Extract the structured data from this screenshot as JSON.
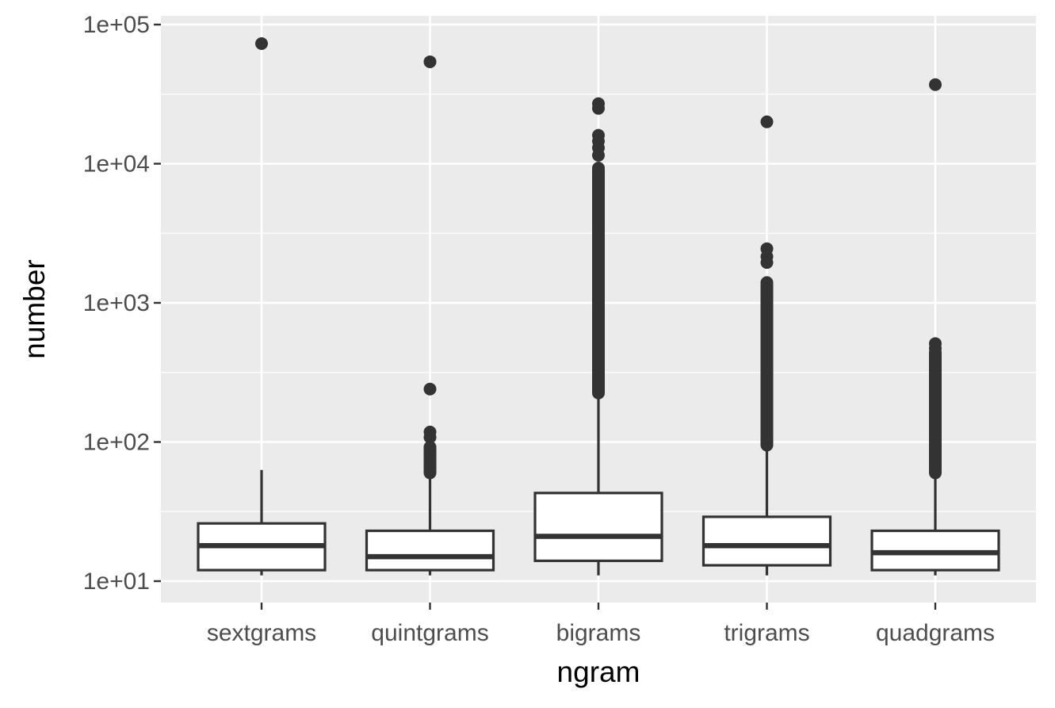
{
  "chart_data": {
    "type": "boxplot",
    "xlabel": "ngram",
    "ylabel": "number",
    "y_scale": "log10",
    "ylim": [
      8.5,
      125000
    ],
    "y_ticks": [
      {
        "value": 10,
        "label": "1e+01"
      },
      {
        "value": 100,
        "label": "1e+02"
      },
      {
        "value": 1000,
        "label": "1e+03"
      },
      {
        "value": 10000,
        "label": "1e+04"
      },
      {
        "value": 100000,
        "label": "1e+05"
      }
    ],
    "grid": true,
    "legend": "none",
    "colors": {
      "panel": "#ebebeb",
      "grid": "#ffffff",
      "box_line": "#333333",
      "box_fill": "#ffffff",
      "outlier": "#333333"
    },
    "categories": [
      "sextgrams",
      "quintgrams",
      "bigrams",
      "trigrams",
      "quadgrams"
    ],
    "boxes": [
      {
        "category": "sextgrams",
        "whisker_low": 11,
        "q1": 12,
        "median": 18,
        "q3": 26,
        "whisker_high": 63,
        "outliers": [
          73000
        ],
        "outlier_band": null
      },
      {
        "category": "quintgrams",
        "whisker_low": 11,
        "q1": 12,
        "median": 15,
        "q3": 23,
        "whisker_high": 56,
        "outliers": [
          54000,
          240,
          118,
          108,
          92,
          84,
          78,
          72,
          66,
          61
        ],
        "outlier_band": [
          60,
          90
        ]
      },
      {
        "category": "bigrams",
        "whisker_low": 11,
        "q1": 14,
        "median": 21,
        "q3": 43,
        "whisker_high": 215,
        "outliers": [
          27000,
          25000,
          16000,
          14500,
          13000,
          11500,
          9300
        ],
        "outlier_band": [
          225,
          9000
        ]
      },
      {
        "category": "trigrams",
        "whisker_low": 11,
        "q1": 13,
        "median": 18,
        "q3": 29,
        "whisker_high": 88,
        "outliers": [
          20000,
          2450,
          2150,
          1950,
          1400
        ],
        "outlier_band": [
          95,
          1350
        ]
      },
      {
        "category": "quadgrams",
        "whisker_low": 11,
        "q1": 12,
        "median": 16,
        "q3": 23,
        "whisker_high": 56,
        "outliers": [
          37000,
          510,
          470
        ],
        "outlier_band": [
          60,
          440
        ]
      }
    ]
  }
}
